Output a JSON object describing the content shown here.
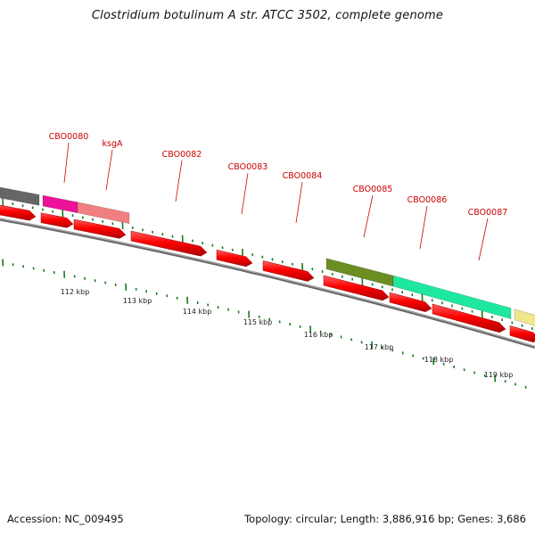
{
  "title": "Clostridium botulinum A str. ATCC 3502, complete genome",
  "footer": {
    "accession": "Accession: NC_009495",
    "summary": "Topology: circular; Length: 3,886,916 bp; Genes: 3,686"
  },
  "colors": {
    "cds": "#ff0000",
    "label": "#cc0000",
    "backbone": "#7a7a7a",
    "ticks": "#1a7a1a"
  },
  "gene_labels": [
    {
      "text": "CBO0080"
    },
    {
      "text": "ksgA"
    },
    {
      "text": "CBO0082"
    },
    {
      "text": "CBO0083"
    },
    {
      "text": "CBO0084"
    },
    {
      "text": "CBO0085"
    },
    {
      "text": "CBO0086"
    },
    {
      "text": "CBO0087"
    }
  ],
  "kbp_labels": [
    {
      "text": "112 kbp"
    },
    {
      "text": "113 kbp"
    },
    {
      "text": "114 kbp"
    },
    {
      "text": "115 kbp"
    },
    {
      "text": "116 kbp"
    },
    {
      "text": "117 kbp"
    },
    {
      "text": "118 kbp"
    },
    {
      "text": "119 kbp"
    }
  ],
  "features": [
    {
      "name": "prev-gene",
      "color": "#666666"
    },
    {
      "name": "CBO0080",
      "color": "#ee1199"
    },
    {
      "name": "ksgA",
      "color": "#f08080"
    },
    {
      "name": "CBO0085",
      "color": "#6b8e23"
    },
    {
      "name": "CBO0086",
      "color": "#1ee8a0"
    },
    {
      "name": "next-gene",
      "color": "#f0e68c"
    }
  ]
}
